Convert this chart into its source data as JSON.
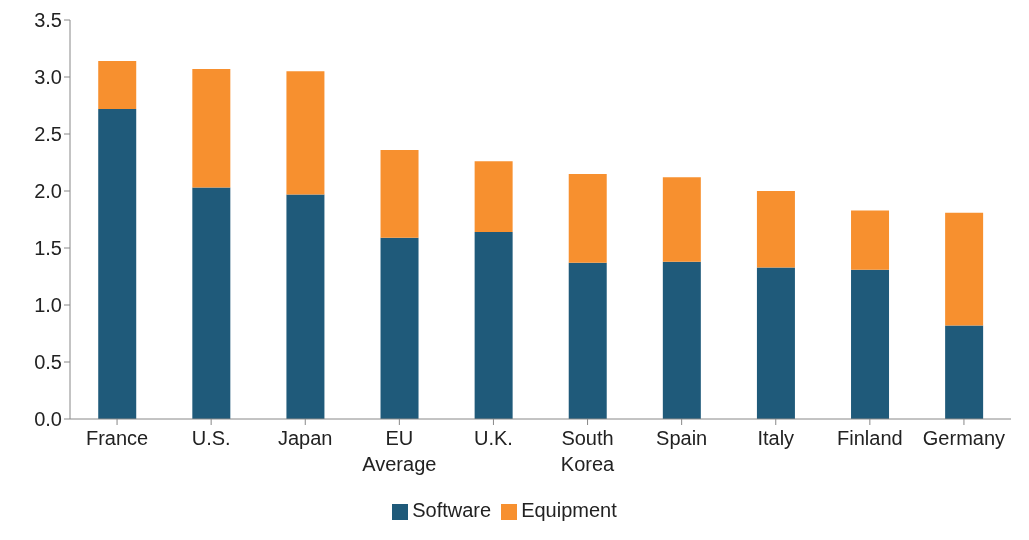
{
  "chart_data": {
    "type": "bar",
    "stacked": true,
    "categories": [
      "France",
      "U.S.",
      "Japan",
      "EU Average",
      "U.K.",
      "South Korea",
      "Spain",
      "Italy",
      "Finland",
      "Germany"
    ],
    "series": [
      {
        "name": "Software",
        "color": "#1f5a7a",
        "values": [
          2.72,
          2.03,
          1.97,
          1.59,
          1.64,
          1.37,
          1.38,
          1.33,
          1.31,
          0.82
        ]
      },
      {
        "name": "Equipment",
        "color": "#f7902f",
        "values": [
          0.42,
          1.04,
          1.08,
          0.77,
          0.62,
          0.78,
          0.74,
          0.67,
          0.52,
          0.99
        ]
      }
    ],
    "ylim": [
      0,
      3.5
    ],
    "yticks": [
      {
        "value": 0,
        "label": "0.0"
      },
      {
        "value": 0.5,
        "label": "0.5"
      },
      {
        "value": 1,
        "label": "1.0"
      },
      {
        "value": 1.5,
        "label": "1.5"
      },
      {
        "value": 2,
        "label": "2.0"
      },
      {
        "value": 2.5,
        "label": "2.5"
      },
      {
        "value": 3,
        "label": "3.0"
      },
      {
        "value": 3.5,
        "label": "3.5"
      }
    ],
    "grid": false,
    "legend": "bottom"
  }
}
